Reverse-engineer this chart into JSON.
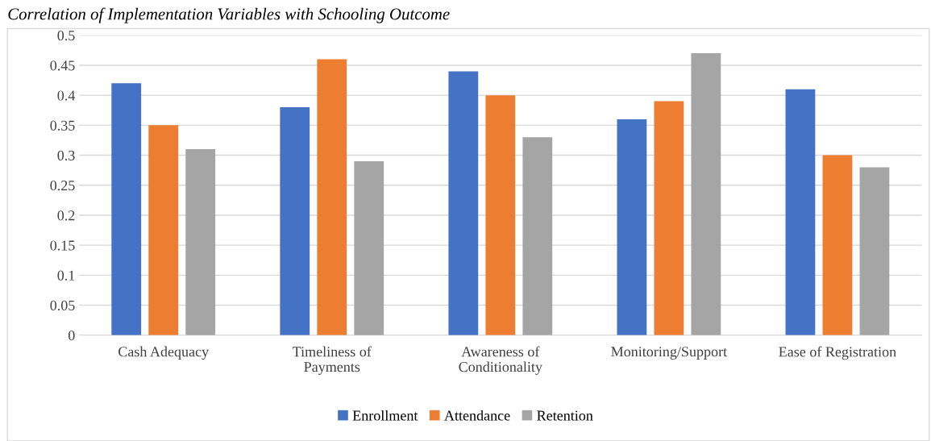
{
  "chart_data": {
    "type": "bar",
    "title": "Correlation of Implementation Variables with Schooling Outcome",
    "categories": [
      "Cash Adequacy",
      "Timeliness of\nPayments",
      "Awareness of\nConditionality",
      "Monitoring/Support",
      "Ease of Registration"
    ],
    "series": [
      {
        "name": "Enrollment",
        "color": "#4472c4",
        "values": [
          0.42,
          0.38,
          0.44,
          0.36,
          0.41
        ]
      },
      {
        "name": "Attendance",
        "color": "#ed7d31",
        "values": [
          0.35,
          0.46,
          0.4,
          0.39,
          0.3
        ]
      },
      {
        "name": "Retention",
        "color": "#a5a5a5",
        "values": [
          0.31,
          0.29,
          0.33,
          0.47,
          0.28
        ]
      }
    ],
    "ylim": [
      0,
      0.5
    ],
    "yticks": [
      0,
      0.05,
      0.1,
      0.15,
      0.2,
      0.25,
      0.3,
      0.35,
      0.4,
      0.45,
      0.5
    ],
    "grid": "y",
    "legend": "bottom"
  }
}
